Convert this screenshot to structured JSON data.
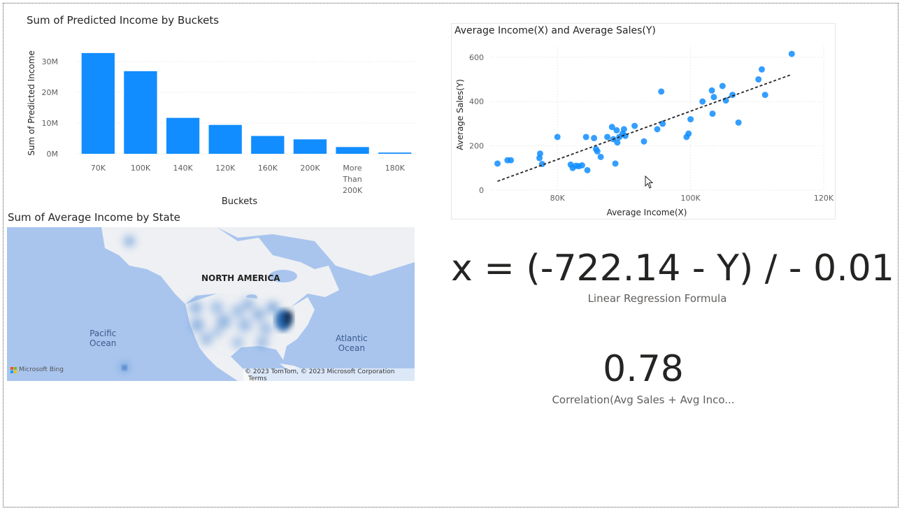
{
  "bar_visual": {
    "title": "Sum of Predicted Income by Buckets"
  },
  "scatter_visual": {
    "title": "Average Income(X) and Average Sales(Y)"
  },
  "map_visual": {
    "title": "Sum of Average Income by State",
    "labels": {
      "continent": "NORTH AMERICA",
      "pacific": "Pacific\nOcean",
      "atlantic": "Atlantic\nOcean"
    },
    "logo": "Microsoft Bing",
    "attribution": "© 2023 TomTom, © 2023 Microsoft Corporation",
    "terms_link": "Terms"
  },
  "formula_card": {
    "value": "x = (-722.14 - Y) / - 0.01",
    "label": "Linear Regression Formula"
  },
  "correlation_card": {
    "value": "0.78",
    "label": "Correlation(Avg Sales + Avg Inco..."
  },
  "chart_data": [
    {
      "type": "bar",
      "title": "Sum of Predicted Income by Buckets",
      "xlabel": "Buckets",
      "ylabel": "Sum of Predicted Income",
      "categories": [
        "70K",
        "100K",
        "140K",
        "120K",
        "160K",
        "200K",
        "More Than 200K",
        "180K"
      ],
      "category_lines": [
        [
          "70K"
        ],
        [
          "100K"
        ],
        [
          "140K"
        ],
        [
          "120K"
        ],
        [
          "160K"
        ],
        [
          "200K"
        ],
        [
          "More",
          "Than",
          "200K"
        ],
        [
          "180K"
        ]
      ],
      "values": [
        32800000,
        26900000,
        11700000,
        9400000,
        5800000,
        4700000,
        2200000,
        400000
      ],
      "ylim": [
        0,
        33000000
      ],
      "yticks": [
        0,
        10000000,
        20000000,
        30000000
      ],
      "ytick_labels": [
        "0M",
        "10M",
        "20M",
        "30M"
      ],
      "color": "#118dff",
      "grid": true
    },
    {
      "type": "scatter",
      "title": "Average Income(X) and Average Sales(Y)",
      "xlabel": "Average Income(X)",
      "ylabel": "Average Sales(Y)",
      "xlim": [
        70000,
        120000
      ],
      "ylim": [
        0,
        650
      ],
      "xticks": [
        80000,
        100000,
        120000
      ],
      "xtick_labels": [
        "80K",
        "100K",
        "120K"
      ],
      "yticks": [
        0,
        200,
        400,
        600
      ],
      "ytick_labels": [
        "0",
        "200",
        "400",
        "600"
      ],
      "color": "#118dff",
      "grid": true,
      "trendline": {
        "x": [
          71000,
          115000
        ],
        "y": [
          40,
          520
        ]
      },
      "points": [
        [
          71000,
          120
        ],
        [
          72500,
          135
        ],
        [
          73000,
          135
        ],
        [
          77300,
          145
        ],
        [
          77400,
          165
        ],
        [
          77700,
          118
        ],
        [
          80000,
          240
        ],
        [
          82000,
          115
        ],
        [
          82300,
          100
        ],
        [
          82800,
          110
        ],
        [
          83200,
          108
        ],
        [
          83700,
          112
        ],
        [
          84300,
          240
        ],
        [
          84500,
          90
        ],
        [
          85500,
          235
        ],
        [
          85800,
          185
        ],
        [
          86000,
          175
        ],
        [
          86500,
          150
        ],
        [
          87500,
          240
        ],
        [
          88200,
          285
        ],
        [
          88400,
          230
        ],
        [
          88700,
          120
        ],
        [
          88900,
          270
        ],
        [
          89000,
          215
        ],
        [
          89300,
          240
        ],
        [
          89800,
          255
        ],
        [
          90000,
          275
        ],
        [
          90200,
          245
        ],
        [
          91600,
          290
        ],
        [
          93000,
          220
        ],
        [
          95000,
          275
        ],
        [
          95600,
          445
        ],
        [
          95800,
          300
        ],
        [
          99400,
          240
        ],
        [
          99700,
          255
        ],
        [
          100000,
          320
        ],
        [
          101800,
          400
        ],
        [
          103200,
          450
        ],
        [
          103300,
          345
        ],
        [
          103500,
          420
        ],
        [
          104800,
          470
        ],
        [
          105300,
          405
        ],
        [
          106300,
          430
        ],
        [
          107200,
          305
        ],
        [
          110200,
          500
        ],
        [
          110700,
          545
        ],
        [
          111200,
          430
        ],
        [
          115200,
          615
        ]
      ]
    }
  ]
}
